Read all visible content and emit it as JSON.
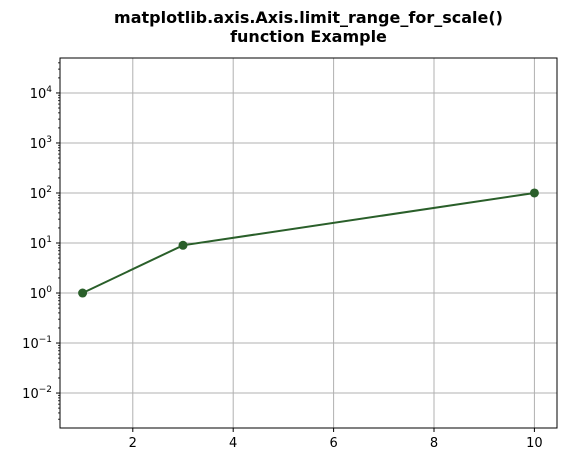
{
  "chart_data": {
    "type": "line",
    "title": [
      "matplotlib.axis.Axis.limit_range_for_scale()",
      "function Example"
    ],
    "xlabel": "",
    "ylabel": "",
    "x": [
      1,
      3,
      10
    ],
    "series": [
      {
        "values": [
          1,
          9,
          100
        ],
        "color": "#2a5f2a",
        "marker": "circle"
      }
    ],
    "xlim": [
      0.55,
      10.45
    ],
    "ylim": [
      0.002,
      50000
    ],
    "yscale": "log",
    "xticks": [
      2,
      4,
      6,
      8,
      10
    ],
    "xtick_labels": [
      "2",
      "4",
      "6",
      "8",
      "10"
    ],
    "yticks": [
      {
        "value": 0.01,
        "base": "10",
        "exp": "−2"
      },
      {
        "value": 0.1,
        "base": "10",
        "exp": "−1"
      },
      {
        "value": 1,
        "base": "10",
        "exp": "0"
      },
      {
        "value": 10,
        "base": "10",
        "exp": "1"
      },
      {
        "value": 100,
        "base": "10",
        "exp": "2"
      },
      {
        "value": 1000,
        "base": "10",
        "exp": "3"
      },
      {
        "value": 10000,
        "base": "10",
        "exp": "4"
      }
    ],
    "grid": true
  }
}
